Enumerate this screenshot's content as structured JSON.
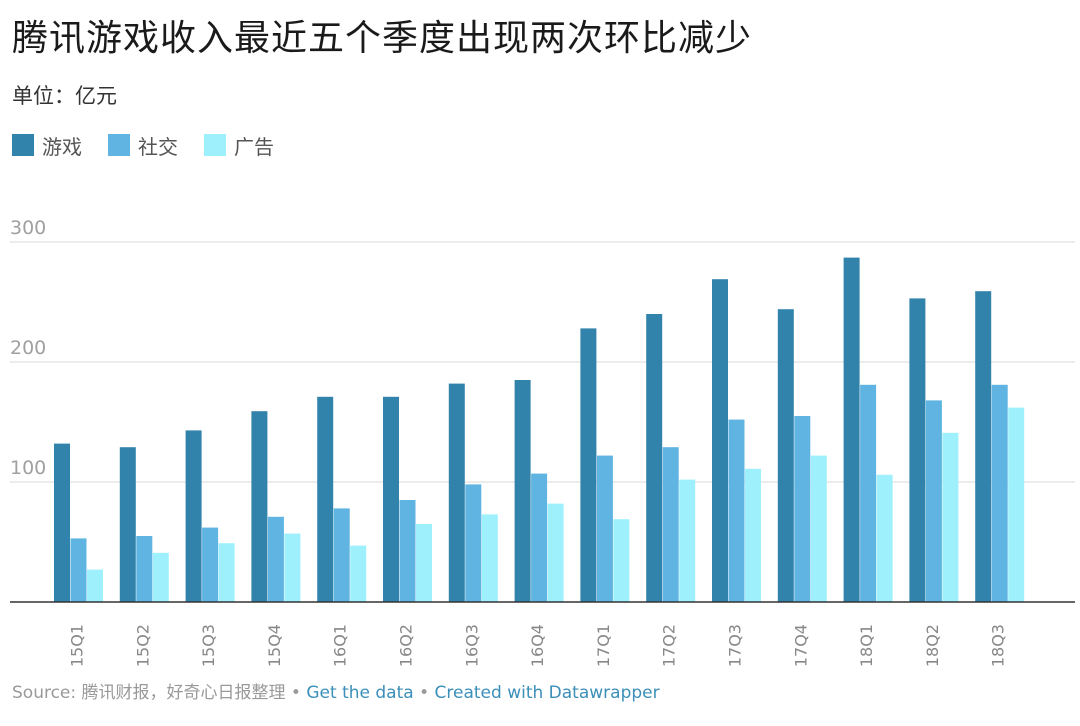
{
  "title": "腾讯游戏收入最近五个季度出现两次环比减少",
  "subtitle": "单位：亿元",
  "footer": {
    "source": "Source: 腾讯财报，好奇心日报整理",
    "sep": " • ",
    "get_data": "Get the data",
    "created": "Created with Datawrapper"
  },
  "chart_data": {
    "type": "bar",
    "title": "腾讯游戏收入最近五个季度出现两次环比减少",
    "subtitle": "单位：亿元",
    "categories": [
      "15Q1",
      "15Q2",
      "15Q3",
      "15Q4",
      "16Q1",
      "16Q2",
      "16Q3",
      "16Q4",
      "17Q1",
      "17Q2",
      "17Q3",
      "17Q4",
      "18Q1",
      "18Q2",
      "18Q3"
    ],
    "series": [
      {
        "name": "游戏",
        "color": "#3183ab",
        "values": [
          132,
          129,
          143,
          159,
          171,
          171,
          182,
          185,
          228,
          240,
          269,
          244,
          287,
          253,
          259
        ]
      },
      {
        "name": "社交",
        "color": "#5fb4e1",
        "values": [
          53,
          55,
          62,
          71,
          78,
          85,
          98,
          107,
          122,
          129,
          152,
          155,
          181,
          168,
          181
        ]
      },
      {
        "name": "广告",
        "color": "#9ef0fd",
        "values": [
          27,
          41,
          49,
          57,
          47,
          65,
          73,
          82,
          69,
          102,
          111,
          122,
          106,
          141,
          162
        ]
      }
    ],
    "yticks": [
      100,
      200,
      300
    ],
    "ylim": [
      0,
      300
    ],
    "grid": true,
    "legend": "top-left"
  }
}
